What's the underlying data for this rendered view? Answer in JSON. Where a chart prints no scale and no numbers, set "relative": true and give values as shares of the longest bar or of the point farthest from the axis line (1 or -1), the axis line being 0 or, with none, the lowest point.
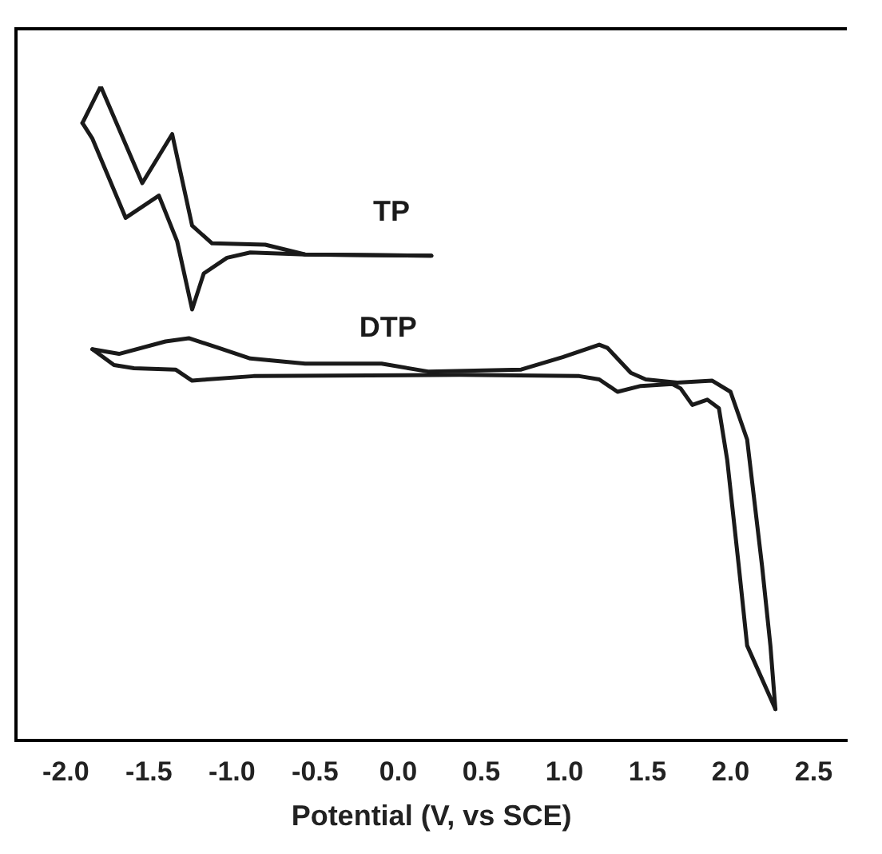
{
  "chart_data": {
    "type": "line",
    "xlabel": "Potential (V, vs SCE)",
    "relative": true,
    "tick_labels": "x",
    "legend": false,
    "grid": false,
    "marker": "none",
    "line_style": "solid",
    "xlim": [
      -2.3,
      2.7
    ],
    "xticks": [
      {
        "value": -2,
        "label": "-2.0"
      },
      -1.5,
      {
        "value": -1,
        "label": "-1.0"
      },
      -0.5,
      {
        "value": 0,
        "label": "0.0"
      },
      0.5,
      {
        "value": 1,
        "label": "1.0"
      },
      1.5,
      {
        "value": 2,
        "label": "2.0"
      },
      2.5
    ],
    "series": [
      {
        "name": "TP",
        "color": "#1a1a1a",
        "x": [
          -1.9,
          -1.79,
          -1.54,
          -1.36,
          -1.24,
          -1.12,
          -0.8,
          -0.56,
          0.2
        ],
        "values": [
          0.944,
          1.0,
          0.852,
          0.927,
          0.787,
          0.76,
          0.758,
          0.743,
          0.741
        ]
      },
      {
        "color": "#1a1a1a",
        "x": [
          -1.9,
          -1.84,
          -1.64,
          -1.44,
          -1.33,
          -1.24,
          -1.17,
          -1.03,
          -0.89,
          -0.56,
          0.2
        ],
        "values": [
          0.944,
          0.92,
          0.799,
          0.833,
          0.763,
          0.659,
          0.714,
          0.738,
          0.746,
          0.743,
          0.741
        ]
      },
      {
        "name": "DTP",
        "color": "#1a1a1a",
        "x": [
          -1.84,
          -1.68,
          -1.4,
          -1.26,
          -1.08,
          -0.89,
          -0.56,
          -0.1,
          0.18,
          0.74,
          0.99,
          1.21,
          1.26,
          1.4,
          1.49,
          1.68,
          1.89,
          2.0,
          2.1,
          2.19,
          2.24,
          2.27
        ],
        "values": [
          0.598,
          0.591,
          0.61,
          0.615,
          0.6,
          0.584,
          0.576,
          0.576,
          0.564,
          0.567,
          0.586,
          0.605,
          0.6,
          0.562,
          0.552,
          0.547,
          0.55,
          0.533,
          0.46,
          0.266,
          0.145,
          0.048
        ]
      },
      {
        "color": "#1a1a1a",
        "x": [
          -1.84,
          -1.71,
          -1.59,
          -1.34,
          -1.24,
          -1.15,
          -0.87,
          0.37,
          1.09,
          1.21,
          1.32,
          1.46,
          1.65,
          1.7,
          1.77,
          1.86,
          1.93,
          1.98,
          2.05,
          2.1,
          2.27
        ],
        "values": [
          0.598,
          0.574,
          0.569,
          0.567,
          0.55,
          0.552,
          0.557,
          0.559,
          0.557,
          0.552,
          0.533,
          0.542,
          0.545,
          0.538,
          0.513,
          0.521,
          0.508,
          0.429,
          0.266,
          0.145,
          0.048
        ]
      }
    ]
  }
}
